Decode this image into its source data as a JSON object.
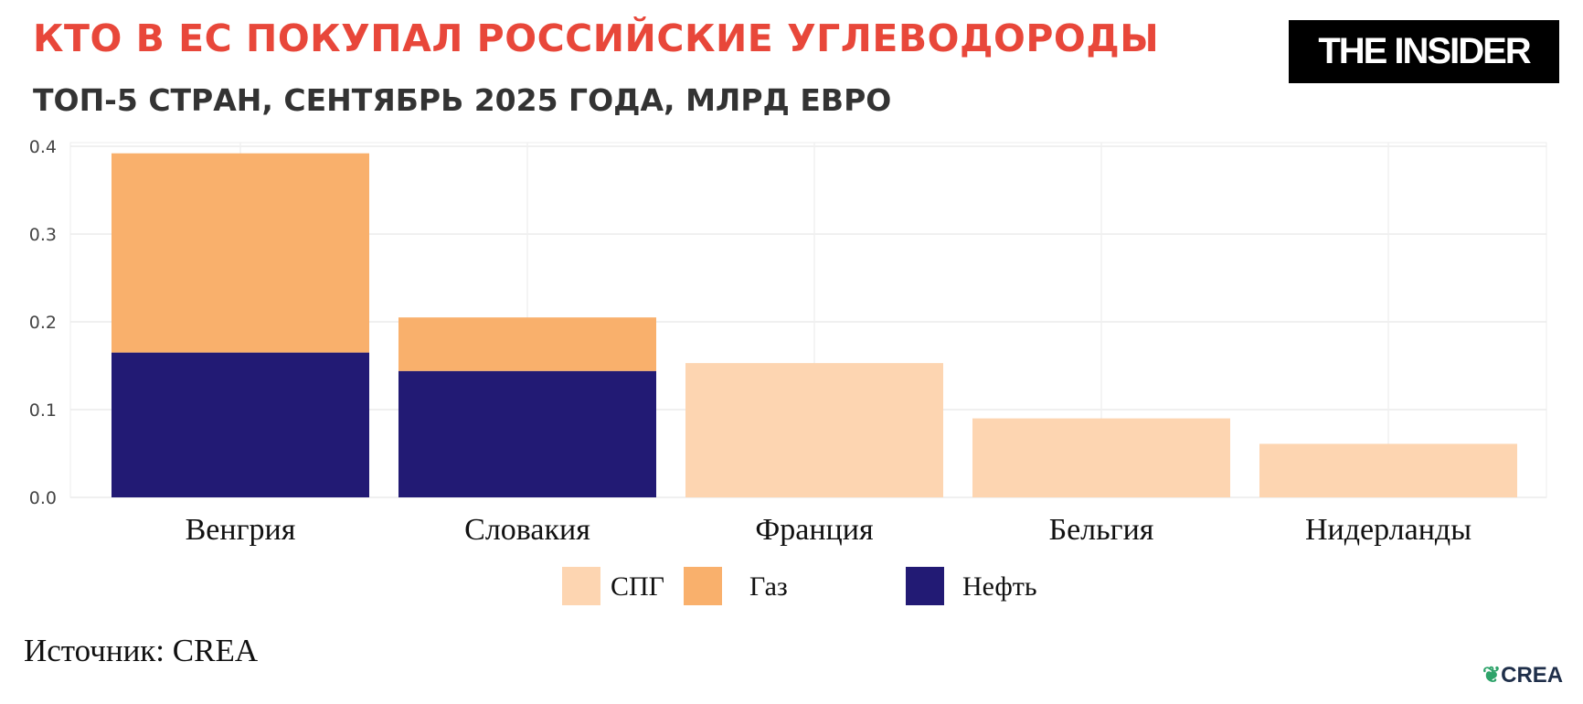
{
  "header": {
    "title": "КТО В ЕС ПОКУПАЛ РОССИЙСКИЕ УГЛЕВОДОРОДЫ",
    "subtitle": "ТОП-5 СТРАН, СЕНТЯБРЬ 2025 ГОДА, МЛРД ЕВРО",
    "logo": "THE INSIDER"
  },
  "footer": {
    "source": "Источник: CREA",
    "crea_logo": "CREA"
  },
  "chart_data": {
    "type": "bar",
    "stacked": true,
    "title": "КТО В ЕС ПОКУПАЛ РОССИЙСКИЕ УГЛЕВОДОРОДЫ",
    "subtitle": "ТОП-5 СТРАН, СЕНТЯБРЬ 2025 ГОДА, МЛРД ЕВРО",
    "categories": [
      "Венгрия",
      "Словакия",
      "Франция",
      "Бельгия",
      "Нидерланды"
    ],
    "series": [
      {
        "name": "Нефть",
        "color": "#221a74",
        "values": [
          0.165,
          0.144,
          0,
          0,
          0
        ]
      },
      {
        "name": "Газ",
        "color": "#f9b06c",
        "values": [
          0.227,
          0.061,
          0,
          0,
          0
        ]
      },
      {
        "name": "СПГ",
        "color": "#fdd5b1",
        "values": [
          0,
          0,
          0.153,
          0.09,
          0.061
        ]
      }
    ],
    "legend_order": [
      "СПГ",
      "Газ",
      "Нефть"
    ],
    "legend_position": "bottom",
    "ylim": [
      0,
      0.4
    ],
    "yticks": [
      "0.0",
      "0.1",
      "0.2",
      "0.3",
      "0.4"
    ],
    "grid": true
  }
}
